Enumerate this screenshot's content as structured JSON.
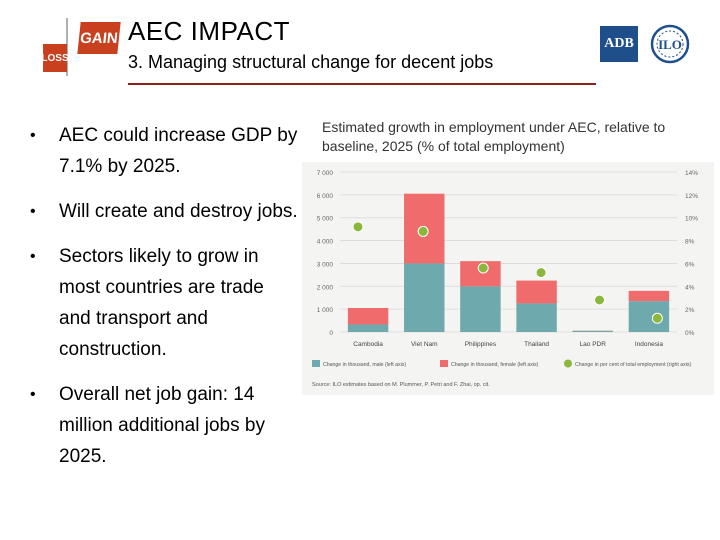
{
  "header": {
    "title": "AEC IMPACT",
    "subtitle": "3. Managing structural change for decent jobs",
    "logo_gain": "GAIN",
    "logo_loss": "LOSS",
    "logo_adb": "ADB",
    "logo_ilo": "ILO"
  },
  "bullets": [
    "AEC could increase GDP by 7.1% by 2025.",
    "Will create and destroy jobs.",
    "Sectors likely to grow in most countries are trade and transport and construction.",
    "Overall net job gain: 14 million additional jobs by 2025."
  ],
  "bullet_symbol": "•",
  "colors": {
    "male": "#6ea9ad",
    "female": "#f06b6b",
    "pct": "#8ab83c",
    "accent_rule": "#8b2020",
    "logo_red": "#c8401d",
    "adb_blue": "#1f4f8b"
  },
  "chart_data": {
    "type": "bar",
    "title": "Estimated growth in employment under AEC, relative to baseline, 2025 (% of total employment)",
    "categories": [
      "Cambodia",
      "Viet Nam",
      "Philippines",
      "Thailand",
      "Lao PDR",
      "Indonesia"
    ],
    "series": [
      {
        "name": "Change in thousand, male (left axis)",
        "axis": "left",
        "stack": "jobs",
        "values": [
          330,
          3000,
          2000,
          1250,
          50,
          1350
        ]
      },
      {
        "name": "Change in thousand, female (left axis)",
        "axis": "left",
        "stack": "jobs",
        "values": [
          720,
          3050,
          1100,
          1000,
          10,
          450
        ]
      },
      {
        "name": "Change in per cent of total employment (right axis)",
        "axis": "right",
        "type": "scatter",
        "values": [
          9.2,
          8.8,
          5.6,
          5.2,
          2.8,
          1.2
        ]
      }
    ],
    "left_axis": {
      "min": 0,
      "max": 7000,
      "ticks": [
        "0",
        "1 000",
        "2 000",
        "3 000",
        "4 000",
        "5 000",
        "6 000",
        "7 000"
      ]
    },
    "right_axis": {
      "min": 0,
      "max": 14,
      "ticks": [
        "0%",
        "2%",
        "4%",
        "6%",
        "8%",
        "10%",
        "12%",
        "14%"
      ]
    },
    "source": "Source: ILO estimates based on M. Plummer, P. Petri and F. Zhai, op. cit."
  }
}
